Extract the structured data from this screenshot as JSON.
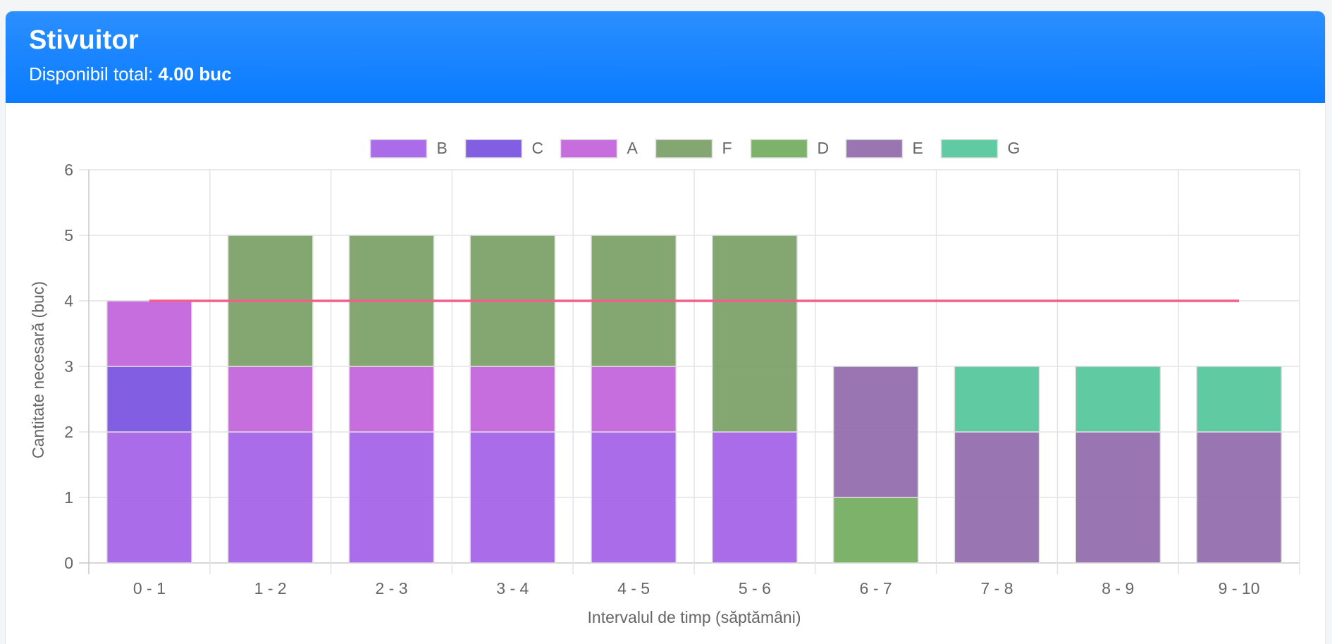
{
  "header": {
    "title": "Stivuitor",
    "subtitle_label": "Disponibil total: ",
    "subtitle_value": "4.00 buc"
  },
  "chart_data": {
    "type": "bar",
    "stacked": true,
    "categories": [
      "0 - 1",
      "1 - 2",
      "2 - 3",
      "3 - 4",
      "4 - 5",
      "5 - 6",
      "6 - 7",
      "7 - 8",
      "8 - 9",
      "9 - 10"
    ],
    "series": [
      {
        "name": "B",
        "color": "#a360e6",
        "values": [
          2,
          2,
          2,
          2,
          2,
          2,
          0,
          0,
          0,
          0
        ]
      },
      {
        "name": "C",
        "color": "#7650e0",
        "values": [
          1,
          0,
          0,
          0,
          0,
          0,
          0,
          0,
          0,
          0
        ]
      },
      {
        "name": "A",
        "color": "#c262dc",
        "values": [
          1,
          1,
          1,
          1,
          1,
          0,
          0,
          0,
          0,
          0
        ]
      },
      {
        "name": "F",
        "color": "#7a9e64",
        "values": [
          0,
          2,
          2,
          2,
          2,
          3,
          0,
          0,
          0,
          0
        ]
      },
      {
        "name": "D",
        "color": "#72ab5e",
        "values": [
          0,
          0,
          0,
          0,
          0,
          0,
          1,
          0,
          0,
          0
        ]
      },
      {
        "name": "E",
        "color": "#9069aa",
        "values": [
          0,
          0,
          0,
          0,
          0,
          0,
          2,
          2,
          2,
          2
        ]
      },
      {
        "name": "G",
        "color": "#52c79a",
        "values": [
          0,
          0,
          0,
          0,
          0,
          0,
          0,
          1,
          1,
          1
        ]
      }
    ],
    "available_line": {
      "value": 4,
      "color": "#f0608a"
    },
    "xlabel": "Intervalul de timp (săptămâni)",
    "ylabel": "Cantitate necesară (buc)",
    "ylim": [
      0,
      6
    ],
    "yticks": [
      0,
      1,
      2,
      3,
      4,
      5,
      6
    ],
    "grid": true,
    "legend": "top-center"
  }
}
